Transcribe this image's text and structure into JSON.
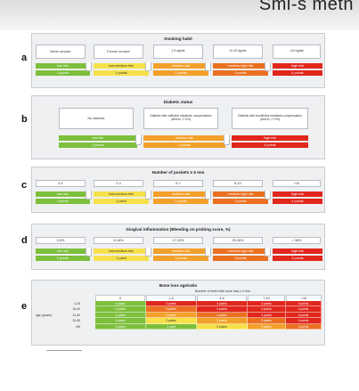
{
  "top_title": "Smi-s metn",
  "colors": {
    "green": "#7cbf3b",
    "yellow": "#f6e14a",
    "orange": "#f3a02a",
    "dark_orange": "#ea7020",
    "red": "#e1261c"
  },
  "sections": {
    "a": {
      "letter": "a",
      "title": "Smoking habit",
      "labels": [
        "Never smoker",
        "Former smoker",
        "1-9 cig/die",
        "10-19 cig/die",
        ">20 cig/die"
      ],
      "risk": [
        "low risk",
        "low-medium risk",
        "medium risk",
        "medium-high risk",
        "high risk"
      ],
      "points": [
        "0 points",
        "1 points",
        "2 points",
        "3 points",
        "4 points"
      ]
    },
    "b": {
      "letter": "b",
      "title": "Diabetic status",
      "labels": [
        "No diabetic",
        "Diabetic with sufficient metabolic compensation (HbA1c <7.0%)",
        "Diabetic with insufficient metabolic compensation (HbA1c >7.0%)"
      ],
      "risk": [
        "low risk",
        "medium risk",
        "high risk"
      ],
      "points": [
        "0 points",
        "2 points",
        "4 points"
      ]
    },
    "c": {
      "letter": "c",
      "title": "Number of pockets ≥ 5 mm",
      "labels": [
        "0-1",
        "2-4",
        "5-7",
        "8-10",
        ">10"
      ],
      "risk": [
        "low risk",
        "low-medium risk",
        "medium risk",
        "medium-high risk",
        "high risk"
      ],
      "points": [
        "0 points",
        "1 point",
        "2 points",
        "3 points",
        "4 points"
      ]
    },
    "d": {
      "letter": "d",
      "title": "Gingival inflammation (Bleeding on probing score, %)",
      "labels": [
        "0-5%",
        "6-16%",
        "17-24%",
        "25-35%",
        "> 36%"
      ],
      "risk": [
        "low risk",
        "low-medium risk",
        "medium risk",
        "medium-high risk",
        "high risk"
      ],
      "points": [
        "0 points",
        "1 point",
        "2 points",
        "3 points",
        "4 points"
      ]
    },
    "e": {
      "letter": "e",
      "title": "Bone loss age/ratio",
      "subtitle": "Number of teeth with bone loss ≥ 4 mm",
      "age_label": "age (years)",
      "columns": [
        "0",
        "1-3",
        "4-6",
        "7-10",
        ">10"
      ],
      "rows": [
        {
          "age": "0-25",
          "cells": [
            "0 points",
            "3 points",
            "4 points",
            "4 points",
            "4 points"
          ]
        },
        {
          "age": "26-40",
          "cells": [
            "0 points",
            "4 points",
            "4 points",
            "4 points",
            "4 points"
          ]
        },
        {
          "age": "41-50",
          "cells": [
            "0 points",
            "4 points",
            "4 points",
            "4 points",
            "4 points"
          ]
        },
        {
          "age": "51-65",
          "cells": [
            "0 points",
            "2 points",
            "3 points",
            "4 points",
            "4 points"
          ]
        },
        {
          "age": ">65",
          "cells": [
            "0 points",
            "1 point",
            "2 points",
            "3 points",
            "4 points"
          ]
        }
      ]
    }
  }
}
